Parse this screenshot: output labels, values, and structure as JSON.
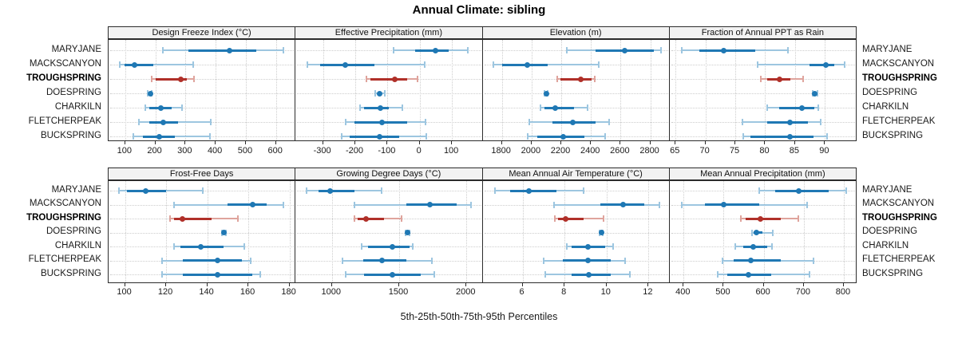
{
  "title": "Annual Climate: sibling",
  "caption": "5th-25th-50th-75th-95th Percentiles",
  "colors": {
    "blue": "#1f78b4",
    "blue_light": "#9dc6e0",
    "red": "#b03029",
    "red_light": "#dfa49d",
    "strip_bg": "#f2f2f2",
    "panel_border": "#2b2b2b",
    "grid": "#cdcdcd"
  },
  "chart_data": {
    "type": "dotplot",
    "layout": "2 rows x 4 cols",
    "percentiles": [
      "5th",
      "25th",
      "50th",
      "75th",
      "95th"
    ],
    "sites": [
      "MARYJANE",
      "MACKSCANYON",
      "TROUGHSPRING",
      "DOESPRING",
      "CHARKILN",
      "FLETCHERPEAK",
      "BUCKSPRING"
    ],
    "highlight_site": "TROUGHSPRING",
    "panels": [
      {
        "title": "Design Freeze Index (°C)",
        "xlim": [
          45,
          665
        ],
        "ticks": [
          100,
          200,
          300,
          400,
          500,
          600
        ],
        "values": {
          "MARYJANE": [
            226,
            310,
            447,
            534,
            624
          ],
          "MACKSCANYON": [
            82,
            97,
            131,
            192,
            326
          ],
          "TROUGHSPRING": [
            187,
            200,
            284,
            304,
            329
          ],
          "DOESPRING": [
            176,
            180,
            183,
            186,
            189
          ],
          "CHARKILN": [
            166,
            179,
            218,
            253,
            289
          ],
          "FLETCHERPEAK": [
            145,
            179,
            226,
            274,
            384
          ],
          "BUCKSPRING": [
            126,
            158,
            213,
            266,
            382
          ]
        }
      },
      {
        "title": "Effective Precipitation (mm)",
        "xlim": [
          -385,
          195
        ],
        "ticks": [
          -300,
          -200,
          -100,
          0,
          100
        ],
        "values": {
          "MARYJANE": [
            -80,
            -15,
            50,
            90,
            150
          ],
          "MACKSCANYON": [
            -349,
            -310,
            -232,
            -141,
            15
          ],
          "TROUGHSPRING": [
            -166,
            -152,
            -78,
            -38,
            -7
          ],
          "DOESPRING": [
            -137,
            -131,
            -124,
            -118,
            -108
          ],
          "CHARKILN": [
            -186,
            -172,
            -122,
            -95,
            -53
          ],
          "FLETCHERPEAK": [
            -230,
            -202,
            -117,
            -38,
            17
          ],
          "BUCKSPRING": [
            -242,
            -217,
            -124,
            -63,
            20
          ]
        }
      },
      {
        "title": "Elevation (m)",
        "xlim": [
          1670,
          2930
        ],
        "ticks": [
          1800,
          2000,
          2200,
          2400,
          2600,
          2800
        ],
        "values": {
          "MARYJANE": [
            2240,
            2430,
            2630,
            2825,
            2870
          ],
          "MACKSCANYON": [
            1740,
            1800,
            1970,
            2110,
            2455
          ],
          "TROUGHSPRING": [
            2175,
            2195,
            2330,
            2405,
            2425
          ],
          "DOESPRING": [
            2085,
            2092,
            2098,
            2104,
            2110
          ],
          "CHARKILN": [
            2060,
            2085,
            2160,
            2285,
            2380
          ],
          "FLETCHERPEAK": [
            1985,
            2140,
            2280,
            2430,
            2525
          ],
          "BUCKSPRING": [
            1975,
            2040,
            2215,
            2355,
            2495
          ]
        }
      },
      {
        "title": "Fraction of Annual PPT as Rain",
        "xlim": [
          64,
          95.3
        ],
        "ticks": [
          65,
          70,
          75,
          80,
          85,
          90
        ],
        "values": {
          "MARYJANE": [
            66,
            69,
            73,
            78.3,
            83.8
          ],
          "MACKSCANYON": [
            78.7,
            87.4,
            90.2,
            91.5,
            93.3
          ],
          "TROUGHSPRING": [
            79.2,
            80.3,
            82.4,
            84.2,
            86.4
          ],
          "DOESPRING": [
            87.9,
            88.1,
            88.3,
            88.5,
            88.7
          ],
          "CHARKILN": [
            80.3,
            82.3,
            86.2,
            88.2,
            88.9
          ],
          "FLETCHERPEAK": [
            76.2,
            80.3,
            84.2,
            87.2,
            89.3
          ],
          "BUCKSPRING": [
            76.3,
            77.5,
            84.2,
            88.1,
            90.4
          ]
        }
      },
      {
        "title": "Frost-Free Days",
        "xlim": [
          92,
          183
        ],
        "ticks": [
          100,
          120,
          140,
          160,
          180
        ],
        "values": {
          "MARYJANE": [
            97,
            101,
            110,
            120,
            138
          ],
          "MACKSCANYON": [
            124,
            150,
            162,
            169,
            177
          ],
          "TROUGHSPRING": [
            122,
            124,
            128,
            142,
            155
          ],
          "DOESPRING": [
            147,
            147.5,
            148,
            148.5,
            149
          ],
          "CHARKILN": [
            124,
            127,
            137,
            148,
            158
          ],
          "FLETCHERPEAK": [
            118,
            128,
            145,
            157,
            161
          ],
          "BUCKSPRING": [
            118,
            128,
            145,
            162,
            166
          ]
        }
      },
      {
        "title": "Growing Degree Days (°C)",
        "xlim": [
          730,
          2120
        ],
        "ticks": [
          1000,
          1500,
          2000
        ],
        "values": {
          "MARYJANE": [
            810,
            900,
            985,
            1165,
            1370
          ],
          "MACKSCANYON": [
            1165,
            1555,
            1730,
            1925,
            2035
          ],
          "TROUGHSPRING": [
            1170,
            1190,
            1255,
            1385,
            1520
          ],
          "DOESPRING": [
            1545,
            1552,
            1560,
            1568,
            1575
          ],
          "CHARKILN": [
            1220,
            1270,
            1450,
            1580,
            1600
          ],
          "FLETCHERPEAK": [
            1080,
            1230,
            1370,
            1555,
            1745
          ],
          "BUCKSPRING": [
            1100,
            1240,
            1447,
            1660,
            1760
          ]
        }
      },
      {
        "title": "Mean Annual Air Temperature (°C)",
        "xlim": [
          4.1,
          13
        ],
        "ticks": [
          6,
          8,
          10,
          12
        ],
        "values": {
          "MARYJANE": [
            4.7,
            5.4,
            6.3,
            7.6,
            8.9
          ],
          "MACKSCANYON": [
            7.5,
            9.7,
            10.8,
            11.8,
            12.5
          ],
          "TROUGHSPRING": [
            7.55,
            7.7,
            8.05,
            8.9,
            9.85
          ],
          "DOESPRING": [
            9.68,
            9.72,
            9.75,
            9.78,
            9.82
          ],
          "CHARKILN": [
            8.1,
            8.35,
            9.1,
            9.95,
            10.3
          ],
          "FLETCHERPEAK": [
            7.0,
            7.9,
            9.1,
            10.2,
            10.9
          ],
          "BUCKSPRING": [
            7.1,
            8.35,
            9.15,
            10.2,
            11.1
          ]
        }
      },
      {
        "title": "Mean Annual Precipitation (mm)",
        "xlim": [
          365,
          832
        ],
        "ticks": [
          400,
          500,
          600,
          700,
          800
        ],
        "values": {
          "MARYJANE": [
            589,
            629,
            687,
            762,
            806
          ],
          "MACKSCANYON": [
            395,
            453,
            501,
            589,
            708
          ],
          "TROUGHSPRING": [
            543,
            555,
            592,
            642,
            687
          ],
          "DOESPRING": [
            570,
            575,
            582,
            597,
            623
          ],
          "CHARKILN": [
            528,
            549,
            574,
            609,
            621
          ],
          "FLETCHERPEAK": [
            497,
            524,
            567,
            642,
            724
          ],
          "BUCKSPRING": [
            486,
            509,
            561,
            619,
            715
          ]
        }
      }
    ]
  }
}
